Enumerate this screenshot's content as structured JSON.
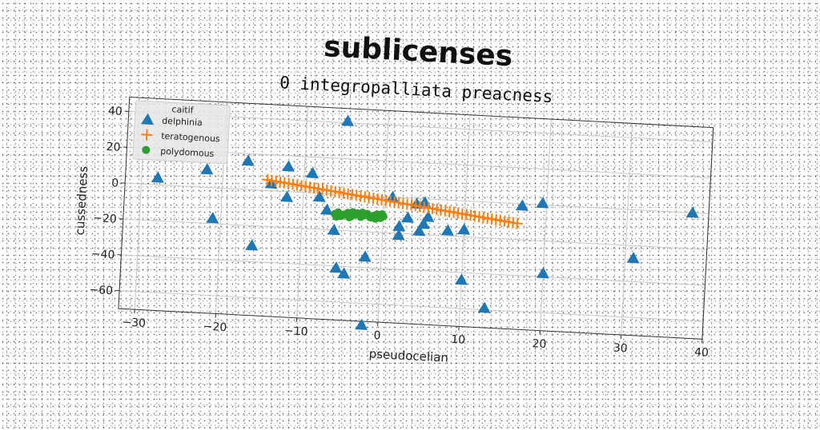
{
  "chart_data": {
    "type": "scatter",
    "title": "sublicenses",
    "subtitle": "0 integropalliata preacness",
    "xlabel": "pseudocelian",
    "ylabel": "cussedness",
    "xlim": [
      -32,
      40
    ],
    "ylim": [
      -70,
      48
    ],
    "xticks": [
      -30,
      -20,
      -10,
      0,
      10,
      20,
      30,
      40
    ],
    "yticks": [
      -60,
      -40,
      -20,
      0,
      20,
      40
    ],
    "grid": true,
    "legend": {
      "title": "caitif",
      "placement": "top-left"
    },
    "series": [
      {
        "name": "delphinia",
        "marker": "triangle",
        "color": "#1f77b4",
        "points": [
          [
            -28,
            4
          ],
          [
            -22,
            10
          ],
          [
            -21,
            -17
          ],
          [
            -17,
            16
          ],
          [
            -16,
            -31
          ],
          [
            -12,
            14
          ],
          [
            -12,
            -3
          ],
          [
            -9,
            11
          ],
          [
            -8,
            -2
          ],
          [
            -7,
            -9
          ],
          [
            -14,
            4
          ],
          [
            -5,
            41
          ],
          [
            -5.5,
            -41
          ],
          [
            -4.5,
            -44
          ],
          [
            -2,
            -34
          ],
          [
            -2,
            -72
          ],
          [
            -6,
            -20
          ],
          [
            1,
            0
          ],
          [
            2,
            -21
          ],
          [
            2,
            -16
          ],
          [
            3,
            -11
          ],
          [
            4,
            -3
          ],
          [
            5,
            -2
          ],
          [
            4.5,
            -18
          ],
          [
            5,
            -14
          ],
          [
            5.5,
            -10
          ],
          [
            8,
            -17
          ],
          [
            10,
            -16
          ],
          [
            10,
            -44
          ],
          [
            13,
            -59
          ],
          [
            17,
            -1
          ],
          [
            19.5,
            1
          ],
          [
            20,
            -38
          ],
          [
            31,
            -27
          ],
          [
            38,
            0
          ]
        ]
      },
      {
        "name": "teratogenous",
        "marker": "plus",
        "color": "#ff7f0e",
        "line": {
          "x0": -14.5,
          "y0": 6,
          "x1": 16.5,
          "y1": -11,
          "count": 60
        }
      },
      {
        "name": "polydomous",
        "marker": "dot",
        "color": "#2ca02c",
        "points": [
          [
            -6,
            -11
          ],
          [
            -5.6,
            -10
          ],
          [
            -5.2,
            -12
          ],
          [
            -4.8,
            -11
          ],
          [
            -4.4,
            -10
          ],
          [
            -4,
            -12
          ],
          [
            -3.6,
            -11
          ],
          [
            -3.2,
            -10
          ],
          [
            -2.8,
            -12
          ],
          [
            -2.4,
            -11
          ],
          [
            -2,
            -10
          ],
          [
            -1.6,
            -12
          ],
          [
            -1.2,
            -11
          ],
          [
            -0.8,
            -10
          ],
          [
            -0.4,
            -12
          ],
          [
            0,
            -11
          ],
          [
            -5.8,
            -12.5
          ],
          [
            -4.2,
            -12.5
          ],
          [
            -2.6,
            -9.5
          ],
          [
            -1,
            -12.5
          ],
          [
            -3.8,
            -9.5
          ],
          [
            -0.2,
            -9.8
          ]
        ]
      }
    ]
  }
}
